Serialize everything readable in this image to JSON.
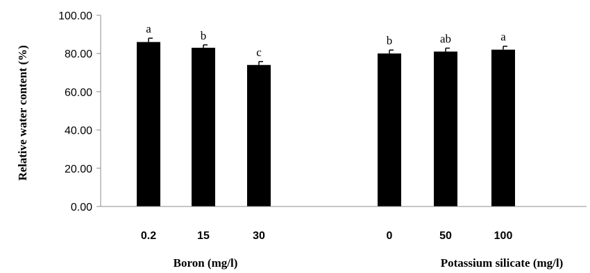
{
  "chart_data": {
    "type": "bar",
    "ylabel": "Relative water content (%)",
    "ylim": [
      0,
      100
    ],
    "yticks": [
      "0.00",
      "20.00",
      "40.00",
      "60.00",
      "80.00",
      "100.00"
    ],
    "grid": false,
    "legend": "none",
    "bar_color": "#000000",
    "groups": [
      {
        "label": "Boron (mg/l)",
        "categories": [
          "0.2",
          "15",
          "30"
        ],
        "values": [
          86,
          83,
          74
        ],
        "errors": [
          2,
          1.5,
          1.8
        ],
        "letters": [
          "a",
          "b",
          "c"
        ]
      },
      {
        "label": "Potassium silicate (mg/l)",
        "categories": [
          "0",
          "50",
          "100"
        ],
        "values": [
          80,
          81,
          82
        ],
        "errors": [
          1.8,
          1.8,
          1.8
        ],
        "letters": [
          "b",
          "ab",
          "a"
        ]
      }
    ]
  }
}
